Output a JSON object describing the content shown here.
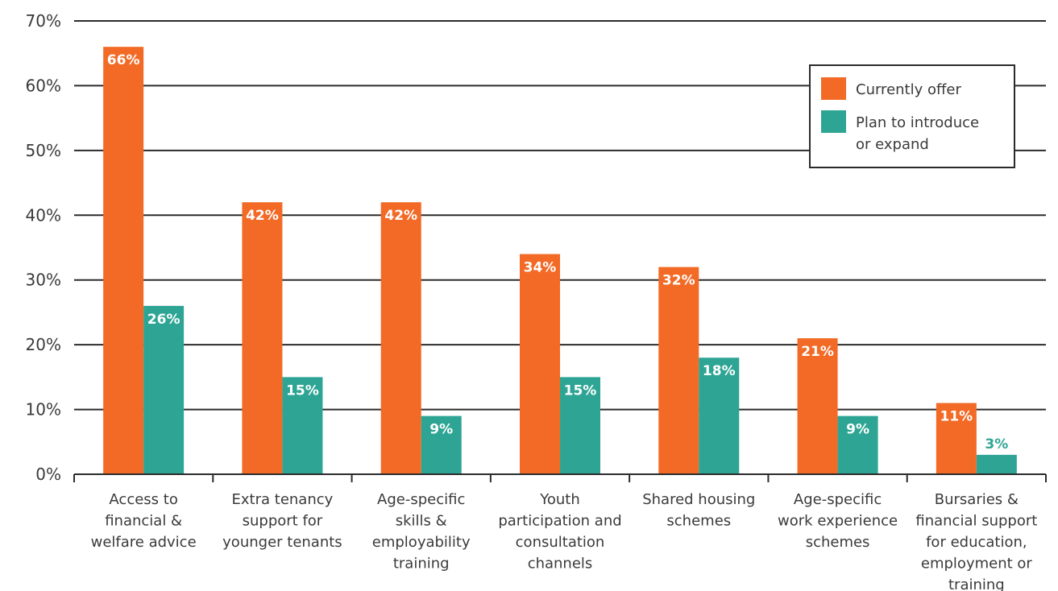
{
  "chart_data": {
    "type": "bar",
    "categories": [
      "Access to financial & welfare advice",
      "Extra tenancy support for younger tenants",
      "Age-specific skills & employability training",
      "Youth participation and consultation channels",
      "Shared housing schemes",
      "Age-specific work experience schemes",
      "Bursaries & financial support for education, employment or training"
    ],
    "category_lines": [
      [
        "Access to",
        "financial &",
        "welfare advice"
      ],
      [
        "Extra tenancy",
        "support for",
        "younger tenants"
      ],
      [
        "Age-specific",
        "skills &",
        "employability",
        "training"
      ],
      [
        "Youth",
        "participation and",
        "consultation",
        "channels"
      ],
      [
        "Shared housing",
        "schemes"
      ],
      [
        "Age-specific",
        "work experience",
        "schemes"
      ],
      [
        "Bursaries &",
        "financial support",
        "for education,",
        "employment or",
        "training"
      ]
    ],
    "series": [
      {
        "name": "Currently offer",
        "color": "#f26a26",
        "values": [
          66,
          42,
          42,
          34,
          32,
          21,
          11
        ],
        "labels": [
          "66%",
          "42%",
          "42%",
          "34%",
          "32%",
          "21%",
          "11%"
        ]
      },
      {
        "name": "Plan to introduce or expand",
        "color": "#2ea594",
        "values": [
          26,
          15,
          9,
          15,
          18,
          9,
          3
        ],
        "labels": [
          "26%",
          "15%",
          "9%",
          "15%",
          "18%",
          "9%",
          "3%"
        ]
      }
    ],
    "legend_lines": [
      [
        "Currently offer"
      ],
      [
        "Plan to introduce",
        "or expand"
      ]
    ],
    "ylim": [
      0,
      70
    ],
    "yticks": [
      0,
      10,
      20,
      30,
      40,
      50,
      60,
      70
    ],
    "ytick_labels": [
      "0%",
      "10%",
      "20%",
      "30%",
      "40%",
      "50%",
      "60%",
      "70%"
    ],
    "grid": true,
    "legend_position": "top-right",
    "title": "",
    "xlabel": "",
    "ylabel": ""
  }
}
